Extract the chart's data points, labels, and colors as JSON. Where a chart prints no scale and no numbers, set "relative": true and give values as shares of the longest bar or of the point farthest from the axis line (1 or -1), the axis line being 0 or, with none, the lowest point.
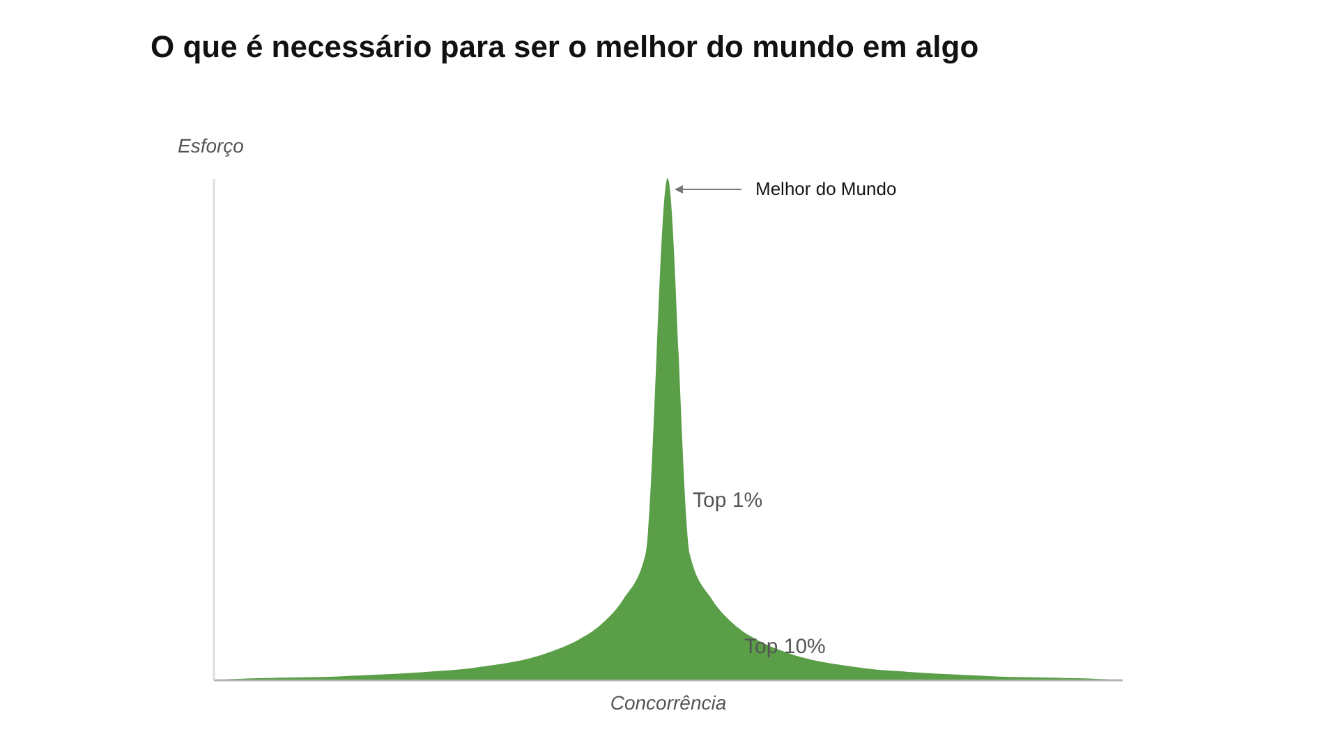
{
  "chart_data": {
    "type": "area",
    "title": "O que é necessário para ser o melhor do mundo em algo",
    "xlabel": "Concorrência",
    "ylabel": "Esforço",
    "relative": true,
    "categories": [
      null,
      null,
      null,
      null,
      null,
      null,
      null,
      null,
      null,
      null,
      null,
      null,
      null,
      null,
      null,
      null,
      null,
      null,
      null,
      null,
      null,
      null,
      null,
      null,
      null,
      null,
      null,
      null,
      null,
      null,
      null,
      null,
      null,
      null,
      null,
      null,
      null,
      null,
      null,
      null,
      null
    ],
    "series": [
      {
        "color": "#5a9e48",
        "values": [
          0,
          0.002,
          0.003,
          0.004,
          0.005,
          0.006,
          0.008,
          0.01,
          0.012,
          0.015,
          0.018,
          0.022,
          0.028,
          0.035,
          0.045,
          0.06,
          0.08,
          0.11,
          0.16,
          0.25,
          1,
          0.25,
          0.16,
          0.11,
          0.08,
          0.06,
          0.045,
          0.035,
          0.028,
          0.022,
          0.018,
          0.015,
          0.012,
          0.01,
          0.008,
          0.006,
          0.005,
          0.004,
          0.003,
          0.002,
          0
        ]
      }
    ],
    "annotations": [
      "Melhor do Mundo",
      "Top 1%",
      "Top 10%"
    ]
  }
}
